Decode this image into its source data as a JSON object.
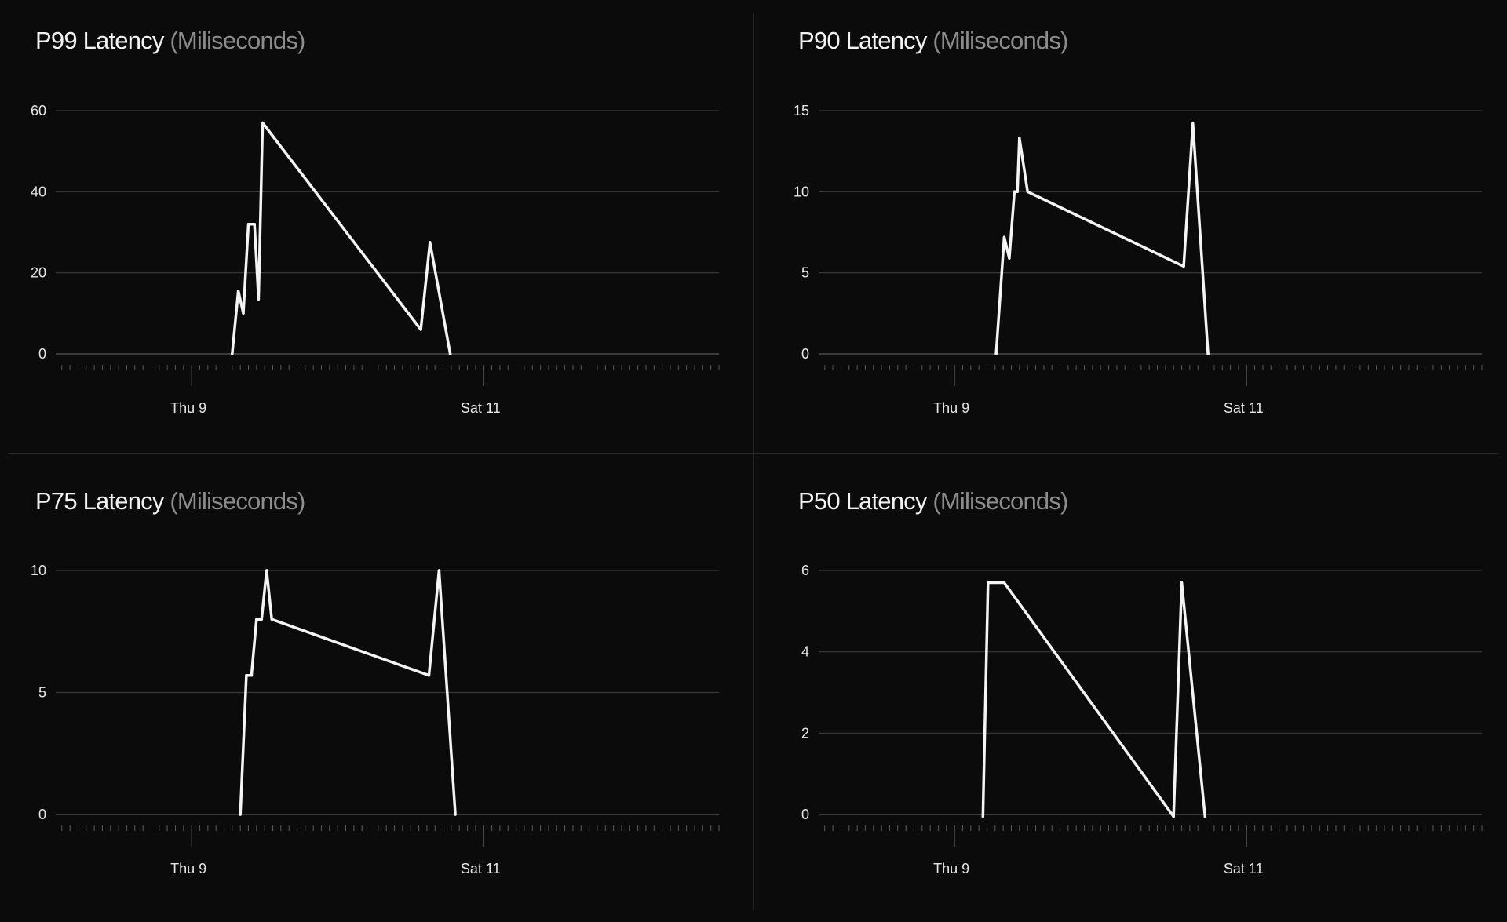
{
  "colors": {
    "background": "#0b0b0b",
    "line": "#f4f4f4",
    "grid": "#3a3a3a",
    "title": "#f2f2f2",
    "unit": "#8c8c8c"
  },
  "chart_data": [
    {
      "type": "line",
      "title": "P99 Latency",
      "unit": "(Miliseconds)",
      "xlim": [
        "Wed 8 01:40",
        "Sun 12 14:40"
      ],
      "x_ticks": [
        "Thu 9",
        "Sat 11"
      ],
      "ylim": [
        0,
        60
      ],
      "y_ticks": [
        "0",
        "20",
        "40",
        "60"
      ],
      "grid": true,
      "x": [
        "Thu 9 06:40",
        "Thu 9 07:40",
        "Thu 9 08:30",
        "Thu 9 09:20",
        "Thu 9 10:20",
        "Thu 9 11:00",
        "Thu 9 11:40",
        "Fri 10 13:40",
        "Fri 10 15:10",
        "Fri 10 18:30"
      ],
      "y": [
        0,
        15.5,
        10,
        32,
        32,
        13.5,
        57,
        6,
        27.5,
        0
      ]
    },
    {
      "type": "line",
      "title": "P90 Latency",
      "unit": "(Miliseconds)",
      "xlim": [
        "Wed 8 01:40",
        "Sun 12 14:40"
      ],
      "x_ticks": [
        "Thu 9",
        "Sat 11"
      ],
      "ylim": [
        0,
        15
      ],
      "y_ticks": [
        "0",
        "5",
        "10",
        "15"
      ],
      "grid": true,
      "x": [
        "Thu 9 06:50",
        "Thu 9 08:10",
        "Thu 9 09:00",
        "Thu 9 09:50",
        "Thu 9 10:20",
        "Thu 9 10:40",
        "Thu 9 12:00",
        "Fri 10 13:40",
        "Fri 10 15:10",
        "Fri 10 17:40"
      ],
      "y": [
        0,
        7.2,
        5.9,
        10,
        10,
        13.3,
        10,
        5.4,
        14.2,
        0
      ]
    },
    {
      "type": "line",
      "title": "P75 Latency",
      "unit": "(Miliseconds)",
      "xlim": [
        "Wed 8 01:40",
        "Sun 12 14:40"
      ],
      "x_ticks": [
        "Thu 9",
        "Sat 11"
      ],
      "ylim": [
        0,
        10
      ],
      "y_ticks": [
        "0",
        "5",
        "10"
      ],
      "grid": true,
      "x": [
        "Thu 9 08:00",
        "Thu 9 09:00",
        "Thu 9 09:50",
        "Thu 9 10:40",
        "Thu 9 11:30",
        "Thu 9 12:20",
        "Thu 9 13:10",
        "Fri 10 15:00",
        "Fri 10 16:40",
        "Fri 10 19:20"
      ],
      "y": [
        0,
        5.7,
        5.7,
        8,
        8,
        10,
        8,
        5.7,
        10,
        0
      ]
    },
    {
      "type": "line",
      "title": "P50 Latency",
      "unit": "(Miliseconds)",
      "xlim": [
        "Wed 8 01:40",
        "Sun 12 14:40"
      ],
      "x_ticks": [
        "Thu 9",
        "Sat 11"
      ],
      "ylim": [
        0,
        6
      ],
      "y_ticks": [
        "0",
        "2",
        "4",
        "6"
      ],
      "grid": true,
      "x": [
        "Thu 9 04:40",
        "Thu 9 05:30",
        "Thu 9 08:10",
        "Fri 10 12:00",
        "Fri 10 13:20",
        "Fri 10 17:10"
      ],
      "y": [
        -0.05,
        5.7,
        5.7,
        -0.05,
        5.7,
        -0.05
      ]
    }
  ]
}
